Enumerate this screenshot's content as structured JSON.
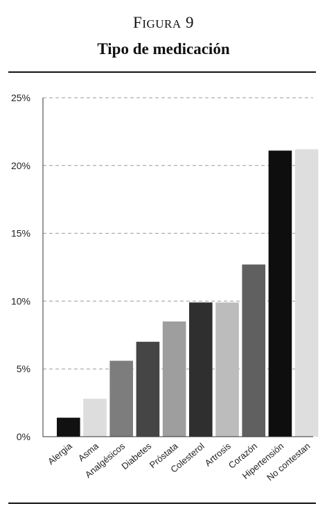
{
  "figure": {
    "label_prefix": "F",
    "label_word": "igura",
    "label_number": "9",
    "title": "Tipo de medicación"
  },
  "chart_data": {
    "type": "bar",
    "title": "Tipo de medicación",
    "xlabel": "",
    "ylabel": "",
    "ylim": [
      0,
      25
    ],
    "y_ticks": [
      0,
      5,
      10,
      15,
      20,
      25
    ],
    "y_tick_labels": [
      "0%",
      "5%",
      "10%",
      "15%",
      "20%",
      "25%"
    ],
    "grid": true,
    "legend": "none",
    "categories": [
      "Alergia",
      "Asma",
      "Analgésicos",
      "Diabetes",
      "Próstata",
      "Colesterol",
      "Artrosis",
      "Corazón",
      "Hipertensión",
      "No contestan"
    ],
    "values": [
      1.4,
      2.8,
      5.6,
      7.0,
      8.5,
      9.9,
      9.9,
      12.7,
      21.1,
      21.2
    ],
    "colors": [
      "#111111",
      "#dddddd",
      "#7d7d7d",
      "#454545",
      "#9e9e9e",
      "#2f2f2f",
      "#bcbcbc",
      "#606060",
      "#0e0e0e",
      "#dedede"
    ]
  }
}
